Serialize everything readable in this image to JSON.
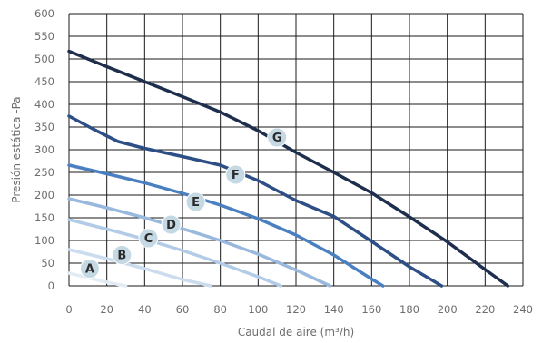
{
  "chart_data": {
    "type": "line",
    "xlabel": "Caudal de aire (m³/h)",
    "ylabel": "Presión estática -Pa",
    "xlim": [
      0,
      240
    ],
    "ylim": [
      0,
      600
    ],
    "xticks": [
      "0",
      "20",
      "40",
      "60",
      "80",
      "100",
      "120",
      "140",
      "160",
      "180",
      "200",
      "220",
      "240"
    ],
    "yticks": [
      "0",
      "50",
      "100",
      "150",
      "200",
      "250",
      "300",
      "350",
      "400",
      "450",
      "500",
      "550",
      "600"
    ],
    "grid": true,
    "series": [
      {
        "name": "A",
        "color": "#e3ebf3",
        "label_at": [
          11,
          38
        ],
        "x": [
          0,
          10,
          20,
          30
        ],
        "y": [
          28,
          18,
          8,
          0
        ]
      },
      {
        "name": "B",
        "color": "#cbdcee",
        "label_at": [
          28,
          68
        ],
        "x": [
          0,
          20,
          40,
          60,
          75
        ],
        "y": [
          80,
          60,
          38,
          14,
          0
        ]
      },
      {
        "name": "C",
        "color": "#b2cbe6",
        "label_at": [
          42,
          105
        ],
        "x": [
          0,
          20,
          40,
          60,
          80,
          100,
          112
        ],
        "y": [
          146,
          125,
          103,
          78,
          50,
          20,
          0
        ]
      },
      {
        "name": "D",
        "color": "#99b8dd",
        "label_at": [
          54,
          135
        ],
        "x": [
          0,
          20,
          40,
          60,
          80,
          100,
          120,
          138
        ],
        "y": [
          192,
          172,
          150,
          126,
          100,
          70,
          35,
          0
        ]
      },
      {
        "name": "E",
        "color": "#4a7fc1",
        "label_at": [
          67,
          185
        ],
        "x": [
          0,
          20,
          40,
          60,
          80,
          100,
          120,
          140,
          160,
          166
        ],
        "y": [
          266,
          247,
          227,
          204,
          178,
          148,
          112,
          68,
          15,
          0
        ]
      },
      {
        "name": "F",
        "color": "#2d4f86",
        "label_at": [
          88,
          245
        ],
        "x": [
          0,
          13,
          26,
          40,
          60,
          80,
          100,
          120,
          140,
          160,
          180,
          197
        ],
        "y": [
          374,
          345,
          318,
          303,
          285,
          266,
          232,
          188,
          153,
          98,
          42,
          0
        ]
      },
      {
        "name": "G",
        "color": "#1e2e4d",
        "label_at": [
          110,
          327
        ],
        "x": [
          0,
          20,
          40,
          60,
          80,
          100,
          120,
          140,
          160,
          180,
          200,
          220,
          232
        ],
        "y": [
          517,
          483,
          450,
          417,
          383,
          342,
          294,
          250,
          205,
          152,
          97,
          36,
          0
        ]
      }
    ]
  }
}
